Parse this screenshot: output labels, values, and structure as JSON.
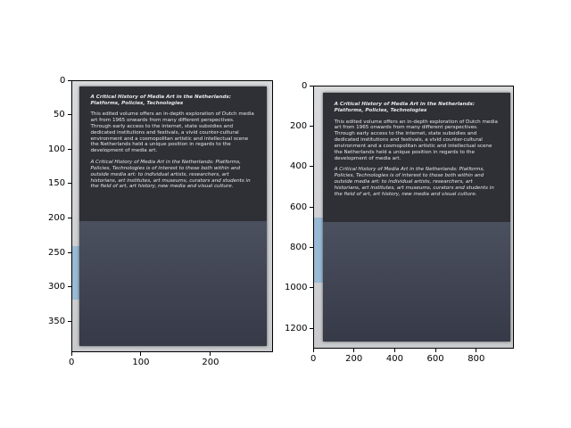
{
  "chart_data": [
    {
      "type": "image",
      "xlim": [
        0,
        290
      ],
      "ylim": [
        395,
        0
      ],
      "x_ticks": [
        "0",
        "100",
        "200"
      ],
      "y_ticks": [
        "0",
        "50",
        "100",
        "150",
        "200",
        "250",
        "300",
        "350"
      ]
    },
    {
      "type": "image",
      "xlim": [
        0,
        985
      ],
      "ylim": [
        1300,
        0
      ],
      "x_ticks": [
        "0",
        "200",
        "400",
        "600",
        "800"
      ],
      "y_ticks": [
        "0",
        "200",
        "400",
        "600",
        "800",
        "1000",
        "1200"
      ]
    }
  ],
  "image_text": {
    "title": "A Critical History of Media Art in the Netherlands: Platforms, Policies, Technologies",
    "para1": "This edited volume offers an in-depth exploration of Dutch media art from 1965 onwards from many different perspectives. Through early access to the internet, state subsidies and dedicated institutions and festivals, a vivid counter-cultural environment and a cosmopolitan artistic and intellectual scene the Netherlands held a unique position in regards to the development of media art.",
    "para2": "A Critical History of Media Art in the Netherlands: Platforms, Policies, Technologies is of interest to those both within and outside media art: to individual artists, researchers, art historians, art institutes, art museums, curators and students in the field of art, art history, new media and visual culture."
  },
  "colors": {
    "board": "#2f2f36",
    "text": "#e7e7ea",
    "strip": "#8fb6d3"
  }
}
